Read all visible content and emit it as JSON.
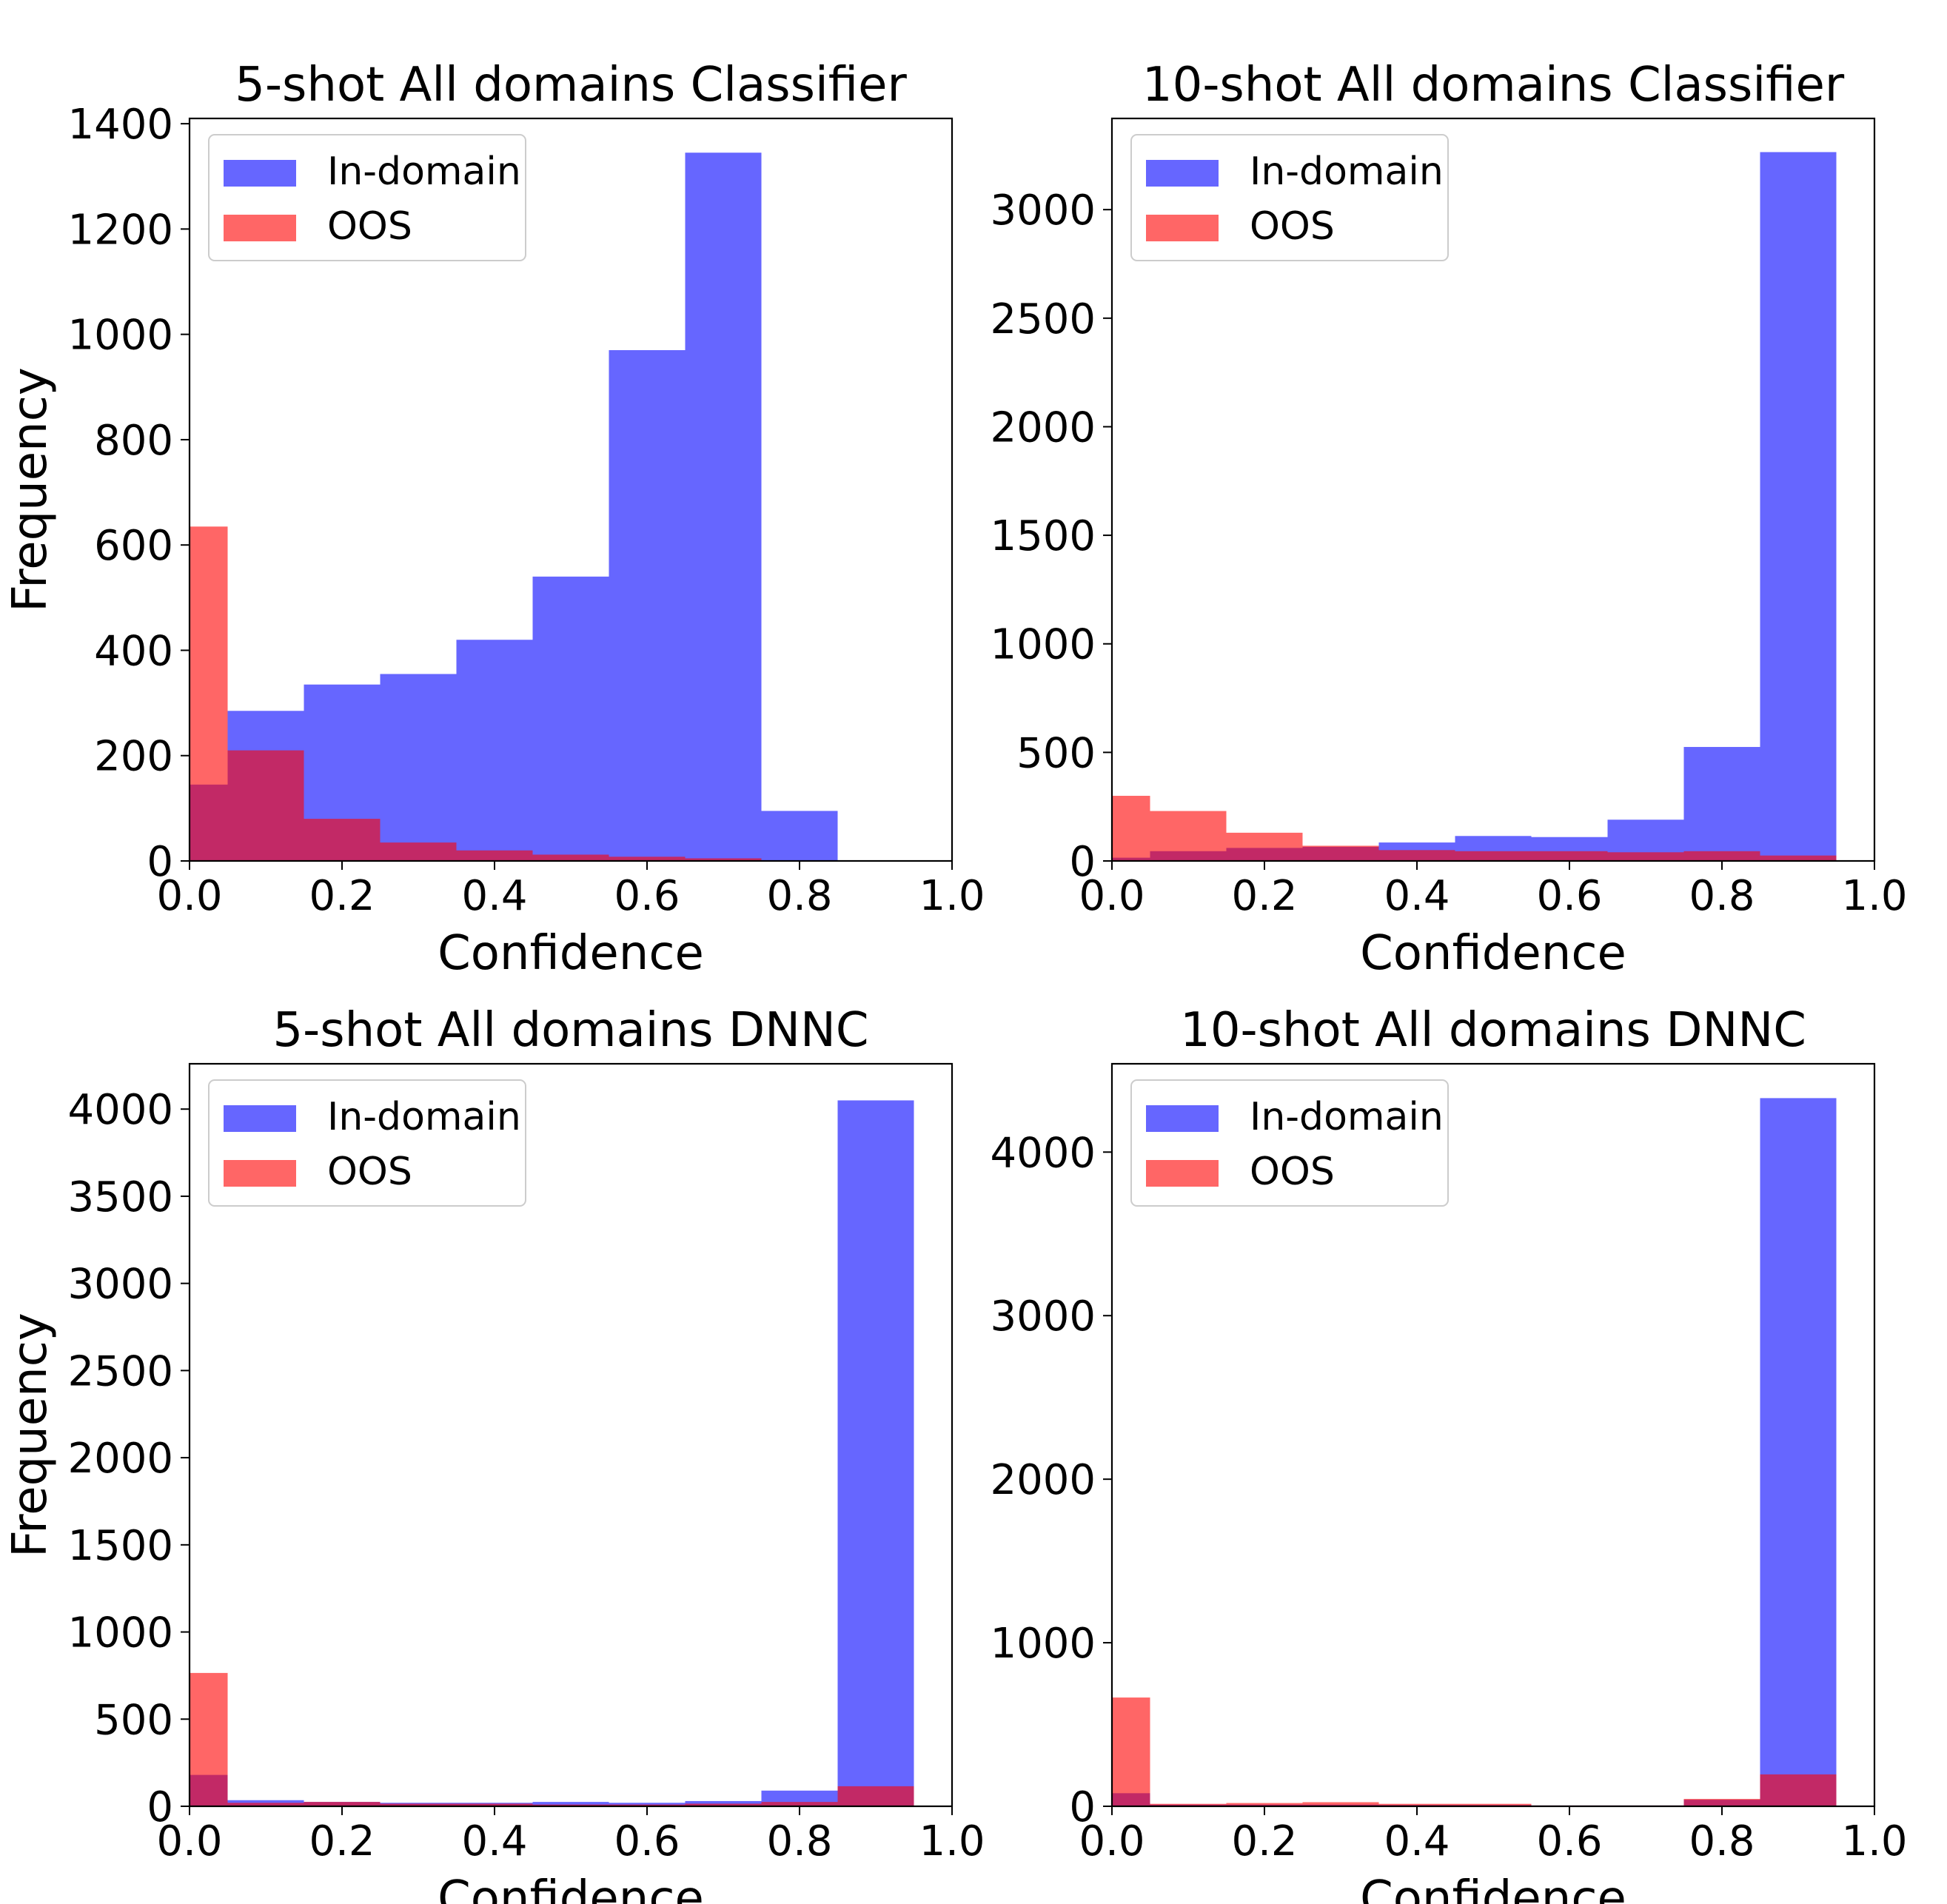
{
  "colors": {
    "in_domain": "#0000ff",
    "oos": "#ff0000",
    "bar_alpha": 0.6
  },
  "chart_data": [
    {
      "type": "bar",
      "title": "5-shot All domains Classifier",
      "xlabel": "Confidence",
      "ylabel": "Frequency",
      "xlim": [
        0.0,
        1.0
      ],
      "ylim": [
        0,
        1410
      ],
      "xticks": [
        "0.0",
        "0.2",
        "0.4",
        "0.6",
        "0.8",
        "1.0"
      ],
      "yticks": [
        0,
        200,
        400,
        600,
        800,
        1000,
        1200,
        1400
      ],
      "ytick_labels": [
        "0",
        "200",
        "400",
        "600",
        "800",
        "1000",
        "1200",
        "1400"
      ],
      "bin_edges": [
        -0.05,
        0.05,
        0.15,
        0.25,
        0.35,
        0.45,
        0.55,
        0.65,
        0.75,
        0.85,
        0.95
      ],
      "legend": {
        "placement": "top-left",
        "entries": [
          "In-domain",
          "OOS"
        ]
      },
      "series": [
        {
          "name": "In-domain",
          "values": [
            145,
            285,
            335,
            355,
            420,
            540,
            970,
            1345,
            95,
            0
          ]
        },
        {
          "name": "OOS",
          "values": [
            635,
            210,
            80,
            35,
            20,
            12,
            8,
            5,
            0,
            0
          ]
        }
      ]
    },
    {
      "type": "bar",
      "title": "10-shot All domains Classifier",
      "xlabel": "Confidence",
      "ylabel": "",
      "xlim": [
        0.0,
        1.0
      ],
      "ylim": [
        0,
        3420
      ],
      "xticks": [
        "0.0",
        "0.2",
        "0.4",
        "0.6",
        "0.8",
        "1.0"
      ],
      "yticks": [
        0,
        500,
        1000,
        1500,
        2000,
        2500,
        3000
      ],
      "ytick_labels": [
        "0",
        "500",
        "1000",
        "1500",
        "2000",
        "2500",
        "3000"
      ],
      "bin_edges": [
        -0.05,
        0.05,
        0.15,
        0.25,
        0.35,
        0.45,
        0.55,
        0.65,
        0.75,
        0.85,
        0.95
      ],
      "legend": {
        "placement": "top-left",
        "entries": [
          "In-domain",
          "OOS"
        ]
      },
      "series": [
        {
          "name": "In-domain",
          "values": [
            15,
            45,
            60,
            65,
            85,
            115,
            110,
            190,
            525,
            3265
          ]
        },
        {
          "name": "OOS",
          "values": [
            300,
            230,
            130,
            70,
            50,
            45,
            45,
            40,
            45,
            25
          ]
        }
      ]
    },
    {
      "type": "bar",
      "title": "5-shot All domains DNNC",
      "xlabel": "Confidence",
      "ylabel": "Frequency",
      "xlim": [
        0.0,
        1.0
      ],
      "ylim": [
        0,
        4260
      ],
      "xticks": [
        "0.0",
        "0.2",
        "0.4",
        "0.6",
        "0.8",
        "1.0"
      ],
      "yticks": [
        0,
        500,
        1000,
        1500,
        2000,
        2500,
        3000,
        3500,
        4000
      ],
      "ytick_labels": [
        "0",
        "500",
        "1000",
        "1500",
        "2000",
        "2500",
        "3000",
        "3500",
        "4000"
      ],
      "bin_edges": [
        -0.05,
        0.05,
        0.15,
        0.25,
        0.35,
        0.45,
        0.55,
        0.65,
        0.75,
        0.85,
        0.95
      ],
      "legend": {
        "placement": "top-left",
        "entries": [
          "In-domain",
          "OOS"
        ]
      },
      "series": [
        {
          "name": "In-domain",
          "values": [
            180,
            35,
            25,
            20,
            20,
            25,
            20,
            30,
            90,
            4050
          ]
        },
        {
          "name": "OOS",
          "values": [
            765,
            20,
            25,
            15,
            15,
            10,
            10,
            15,
            25,
            115
          ]
        }
      ]
    },
    {
      "type": "bar",
      "title": "10-shot All domains DNNC",
      "xlabel": "Confidence",
      "ylabel": "",
      "xlim": [
        0.0,
        1.0
      ],
      "ylim": [
        0,
        4540
      ],
      "xticks": [
        "0.0",
        "0.2",
        "0.4",
        "0.6",
        "0.8",
        "1.0"
      ],
      "yticks": [
        0,
        1000,
        2000,
        3000,
        4000
      ],
      "ytick_labels": [
        "0",
        "1000",
        "2000",
        "3000",
        "4000"
      ],
      "bin_edges": [
        -0.05,
        0.05,
        0.15,
        0.25,
        0.35,
        0.45,
        0.55,
        0.65,
        0.75,
        0.85,
        0.95
      ],
      "legend": {
        "placement": "top-left",
        "entries": [
          "In-domain",
          "OOS"
        ]
      },
      "series": [
        {
          "name": "In-domain",
          "values": [
            80,
            10,
            10,
            10,
            8,
            8,
            5,
            5,
            40,
            4330
          ]
        },
        {
          "name": "OOS",
          "values": [
            665,
            15,
            20,
            25,
            15,
            15,
            5,
            5,
            45,
            195
          ]
        }
      ]
    }
  ]
}
